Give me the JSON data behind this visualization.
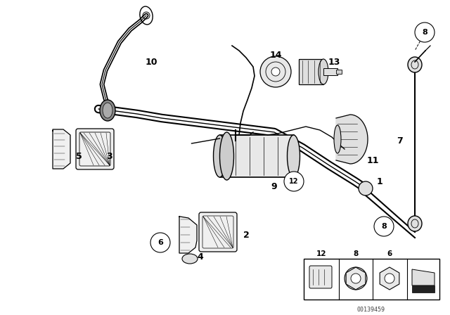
{
  "bg_color": "#ffffff",
  "line_color": "#000000",
  "fig_width": 6.4,
  "fig_height": 4.48,
  "dpi": 100,
  "watermark": "00139459",
  "border_color": "#cccccc"
}
